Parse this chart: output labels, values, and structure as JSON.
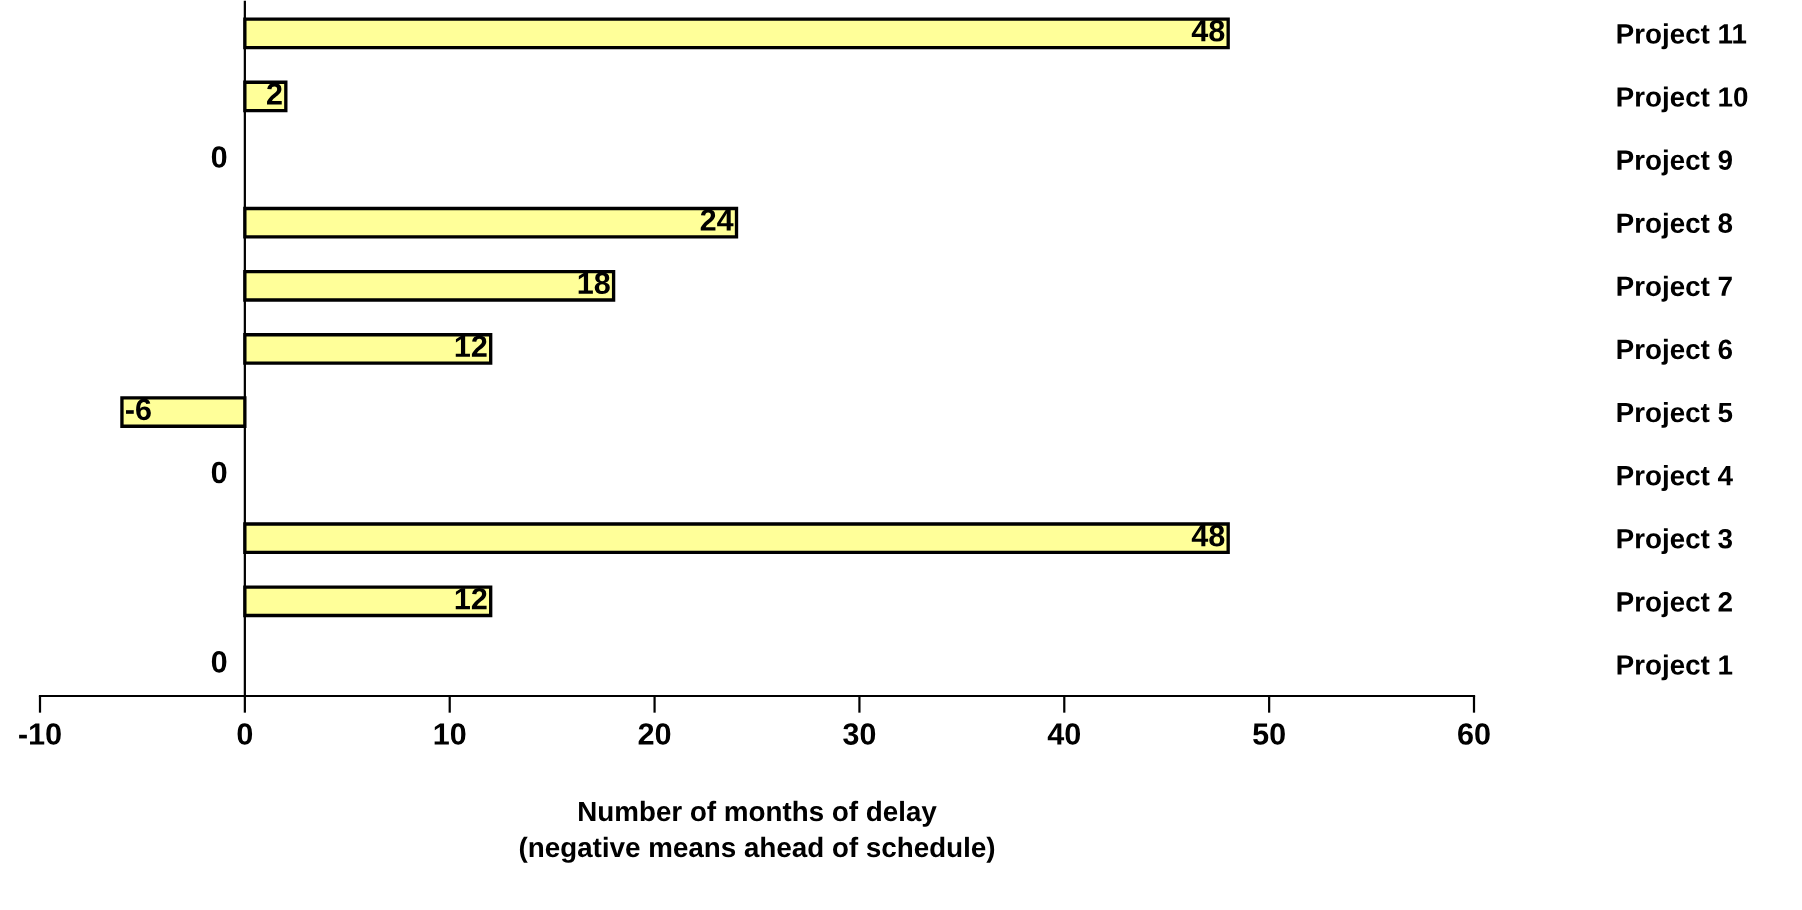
{
  "chart_data": {
    "type": "bar",
    "orientation": "horizontal",
    "categories": [
      "Project 11",
      "Project 10",
      "Project 9",
      "Project 8",
      "Project 7",
      "Project 6",
      "Project 5",
      "Project 4",
      "Project 3",
      "Project 2",
      "Project 1"
    ],
    "values": [
      48,
      2,
      0,
      24,
      18,
      12,
      -6,
      0,
      48,
      12,
      0
    ],
    "color": "#ffff99",
    "data_labels": true,
    "xlim": [
      -10,
      60
    ],
    "xticks": [
      -10,
      0,
      10,
      20,
      30,
      40,
      50,
      60
    ],
    "legend": false,
    "xlabel": "Number of months of delay\n(negative means ahead of schedule)"
  }
}
